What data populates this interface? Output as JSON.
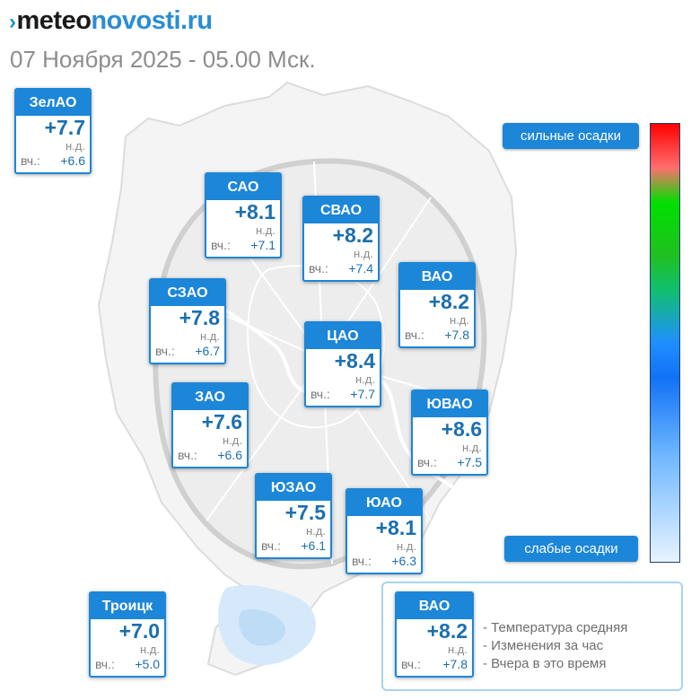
{
  "header": {
    "logo_mark": "›",
    "logo_part1": "meteo",
    "logo_part2": "novosti.ru",
    "subtitle": "07 Ноября 2025 - 05.00 Мск."
  },
  "districts": [
    {
      "name": "ЗелАО",
      "temp": "+7.7",
      "change": "н.д.",
      "yest_label": "вч.:",
      "yest": "+6.6"
    },
    {
      "name": "САО",
      "temp": "+8.1",
      "change": "н.д.",
      "yest_label": "вч.:",
      "yest": "+7.1"
    },
    {
      "name": "СВАО",
      "temp": "+8.2",
      "change": "н.д.",
      "yest_label": "вч.:",
      "yest": "+7.4"
    },
    {
      "name": "ВАО",
      "temp": "+8.2",
      "change": "н.д.",
      "yest_label": "вч.:",
      "yest": "+7.8"
    },
    {
      "name": "СЗАО",
      "temp": "+7.8",
      "change": "н.д.",
      "yest_label": "вч.:",
      "yest": "+6.7"
    },
    {
      "name": "ЦАО",
      "temp": "+8.4",
      "change": "н.д.",
      "yest_label": "вч.:",
      "yest": "+7.7"
    },
    {
      "name": "ЗАО",
      "temp": "+7.6",
      "change": "н.д.",
      "yest_label": "вч.:",
      "yest": "+6.6"
    },
    {
      "name": "ЮВАО",
      "temp": "+8.6",
      "change": "н.д.",
      "yest_label": "вч.:",
      "yest": "+7.5"
    },
    {
      "name": "ЮЗАО",
      "temp": "+7.5",
      "change": "н.д.",
      "yest_label": "вч.:",
      "yest": "+6.1"
    },
    {
      "name": "ЮАО",
      "temp": "+8.1",
      "change": "н.д.",
      "yest_label": "вч.:",
      "yest": "+6.3"
    },
    {
      "name": "Троицк",
      "temp": "+7.0",
      "change": "н.д.",
      "yest_label": "вч.:",
      "yest": "+5.0"
    }
  ],
  "scale": {
    "top_label": "сильные осадки",
    "bottom_label": "слабые осадки"
  },
  "legend": {
    "sample": {
      "name": "ВАО",
      "temp": "+8.2",
      "change": "н.д.",
      "yest_label": "вч.:",
      "yest": "+7.8"
    },
    "line1": "- Температура средняя",
    "line2": "- Изменения за час",
    "line3": "- Вчера в это время"
  },
  "colors": {
    "accent": "#1c86d8",
    "temp_text": "#1b6fae",
    "map_fill": "#f0f0f0",
    "map_border": "#d2d2d2",
    "precip": "#bcdcf6"
  }
}
